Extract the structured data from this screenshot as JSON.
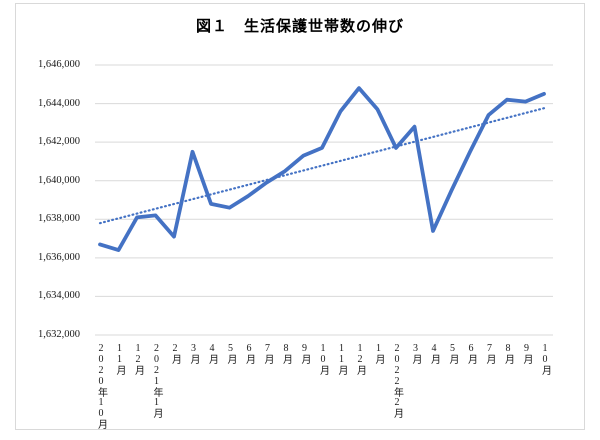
{
  "chart": {
    "border_color": "#d9d9d9",
    "gridline_color": "#d9d9d9",
    "accent_color": "#4472c4",
    "text_color": "#1a1a1a"
  },
  "chart_data": {
    "type": "line",
    "title": "図１　生活保護世帯数の伸び",
    "x": [
      "2020年10月",
      "11月",
      "12月",
      "2021年1月",
      "2月",
      "3月",
      "4月",
      "5月",
      "6月",
      "7月",
      "8月",
      "9月",
      "10月",
      "11月",
      "12月",
      "1月",
      "2022年2月",
      "3月",
      "4月",
      "5月",
      "6月",
      "7月",
      "8月",
      "9月",
      "10月"
    ],
    "series": [
      {
        "name": "生活保護世帯数",
        "values": [
          1636700,
          1636400,
          1638100,
          1638200,
          1637100,
          1641500,
          1638800,
          1638600,
          1639200,
          1639900,
          1640500,
          1641300,
          1641700,
          1643600,
          1644800,
          1643700,
          1641700,
          1642800,
          1637400,
          1639500,
          1641500,
          1643400,
          1644200,
          1644100,
          1644500
        ]
      }
    ],
    "trendline": {
      "style": "dotted",
      "start_value": 1637800,
      "end_value": 1643800
    },
    "ylim": [
      1632000,
      1646000
    ],
    "ytick_step": 2000,
    "y_tick_labels": [
      "1,646,000",
      "1,644,000",
      "1,642,000",
      "1,640,000",
      "1,638,000",
      "1,636,000",
      "1,634,000",
      "1,632,000"
    ],
    "grid": true,
    "legend": false,
    "xlabel": "",
    "ylabel": ""
  }
}
